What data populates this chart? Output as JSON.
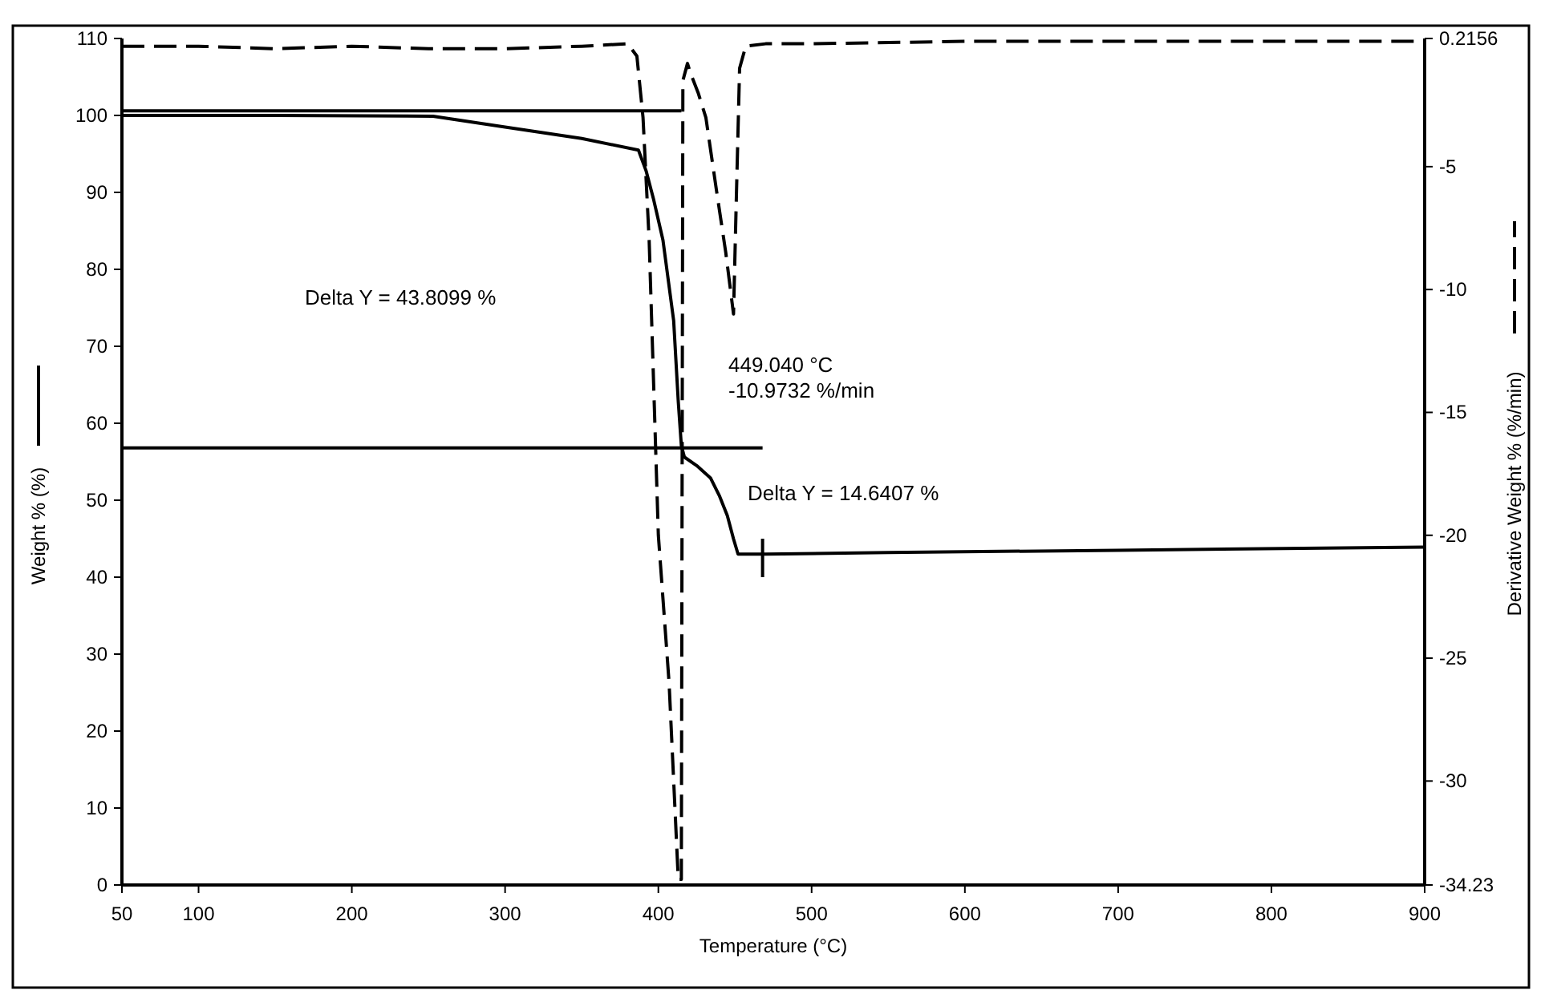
{
  "chart_data": {
    "type": "line",
    "xlabel": "Temperature (°C)",
    "ylabel": "Weight % (%)",
    "y2label": "Derivative Weight % (%/min)",
    "xlim": [
      50,
      900
    ],
    "xticks": [
      50,
      100,
      200,
      300,
      400,
      500,
      600,
      700,
      800,
      900
    ],
    "ylim": [
      0,
      110
    ],
    "yticks": [
      0,
      10,
      20,
      30,
      40,
      50,
      60,
      70,
      80,
      90,
      100,
      110
    ],
    "y2lim": [
      -34.23,
      0.2156
    ],
    "y2ticks": [
      -34.23,
      -30,
      -25,
      -20,
      -15,
      -10,
      -5,
      0.2156
    ],
    "grid": false,
    "marker": "none",
    "series": [
      {
        "color": "#000000",
        "line_style": "solid",
        "x": [
          50,
          150,
          253,
          300,
          350,
          387,
          392,
          397,
          403,
          410,
          413,
          415,
          417,
          425,
          434,
          440,
          445,
          449,
          452,
          470,
          550,
          700,
          900
        ],
        "values": [
          100,
          100,
          99.9,
          98.5,
          97,
          95.5,
          92.8,
          89,
          83.8,
          73.3,
          62.8,
          57.1,
          55.6,
          54.5,
          52.9,
          50.5,
          48,
          45,
          43,
          43,
          43.2,
          43.5,
          43.9
        ]
      },
      {
        "color": "#000000",
        "line_style": "dashed",
        "axis": "y2",
        "x": [
          50,
          100,
          150,
          200,
          250,
          300,
          350,
          380,
          386,
          390,
          394,
          400,
          407,
          413,
          415,
          416,
          419,
          421,
          426,
          431,
          438,
          444,
          449.04,
          451,
          453,
          457,
          470,
          500,
          600,
          700,
          800,
          900
        ],
        "values": [
          -0.1,
          -0.1,
          -0.2,
          -0.1,
          -0.2,
          -0.2,
          -0.1,
          0,
          -0.5,
          -3,
          -8,
          -20,
          -26,
          -34,
          -34,
          -1.5,
          -0.8,
          -1.2,
          -2,
          -3,
          -6,
          -8.5,
          -11,
          -6,
          -1,
          -0.1,
          0,
          0,
          0.1,
          0.1,
          0.1,
          0.1
        ]
      },
      {
        "color": "#000000",
        "line_style": "solid",
        "x": [
          50,
          415
        ],
        "values": [
          100.6,
          100.6
        ]
      },
      {
        "color": "#000000",
        "line_style": "solid",
        "x": [
          51,
          468
        ],
        "values": [
          56.8,
          56.8
        ]
      },
      {
        "color": "#000000",
        "line_style": "solid",
        "x": [
          468,
          468
        ],
        "values": [
          45,
          40
        ]
      }
    ],
    "annotations": [
      "Delta Y = 43.8099 %",
      "449.040 °C\n-10.9732 %/min",
      "Delta Y = 14.6407 %"
    ]
  }
}
